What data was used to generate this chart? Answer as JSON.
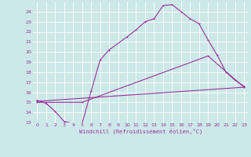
{
  "xlabel": "Windchill (Refroidissement éolien,°C)",
  "bg_color": "#cce8e8",
  "line_color": "#993399",
  "grid_color": "#ffffff",
  "xlim": [
    -0.5,
    23.5
  ],
  "ylim": [
    13,
    25
  ],
  "xticks": [
    0,
    1,
    2,
    3,
    4,
    5,
    6,
    7,
    8,
    9,
    10,
    11,
    12,
    13,
    14,
    15,
    16,
    17,
    18,
    19,
    20,
    21,
    22,
    23
  ],
  "yticks": [
    13,
    14,
    15,
    16,
    17,
    18,
    19,
    20,
    21,
    22,
    23,
    24
  ],
  "line1_x": [
    0,
    1,
    2,
    3,
    4,
    5,
    6,
    7,
    8,
    10,
    11,
    12,
    13,
    14,
    15,
    16,
    17,
    18,
    19,
    20,
    21,
    22,
    23
  ],
  "line1_y": [
    15.2,
    14.9,
    14.1,
    13.1,
    12.9,
    12.9,
    16.1,
    19.2,
    20.2,
    21.5,
    22.2,
    23.0,
    23.3,
    24.6,
    24.7,
    24.0,
    23.3,
    22.8,
    21.2,
    19.7,
    18.0,
    17.2,
    16.6
  ],
  "line2_x": [
    0,
    23
  ],
  "line2_y": [
    15.1,
    16.5
  ],
  "line3_x": [
    0,
    5,
    19,
    23
  ],
  "line3_y": [
    15.0,
    15.0,
    19.6,
    16.5
  ]
}
